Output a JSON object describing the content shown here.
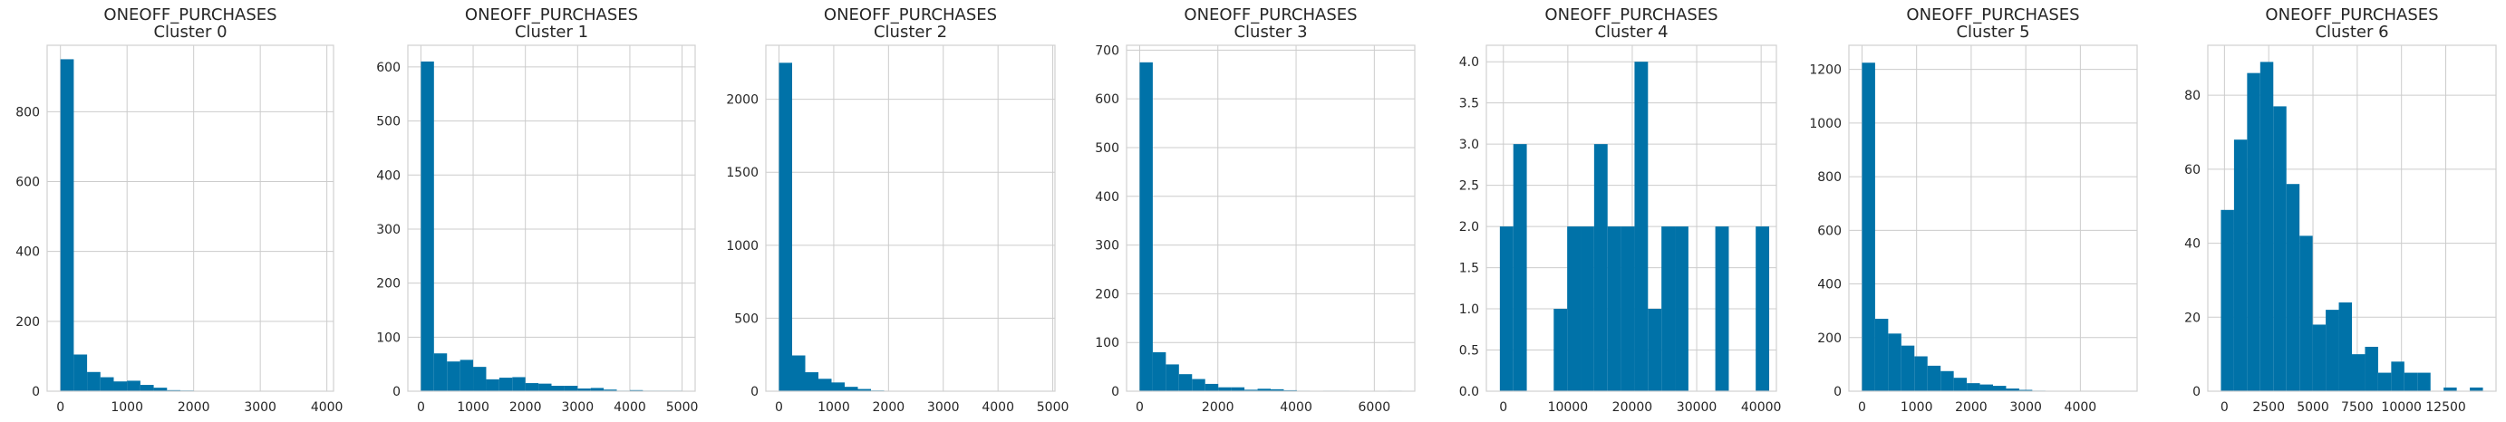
{
  "chart_data": [
    {
      "type": "bar",
      "title": "ONEOFF_PURCHASES",
      "subtitle": "Cluster 0",
      "bin_start": 0,
      "bin_width": 200,
      "values": [
        950,
        105,
        55,
        40,
        28,
        30,
        18,
        10,
        3,
        2,
        1,
        1,
        0,
        0,
        0,
        0,
        0,
        0,
        0,
        1
      ],
      "xlim": [
        -200,
        4100
      ],
      "ylim": [
        0,
        990
      ],
      "xticks": [
        0,
        1000,
        2000,
        3000,
        4000
      ],
      "yticks": [
        0,
        200,
        400,
        600,
        800
      ],
      "color": "#0072a8",
      "grid": true
    },
    {
      "type": "bar",
      "title": "ONEOFF_PURCHASES",
      "subtitle": "Cluster 1",
      "bin_start": 0,
      "bin_width": 250,
      "values": [
        610,
        70,
        55,
        58,
        45,
        22,
        25,
        26,
        15,
        14,
        10,
        10,
        5,
        6,
        3,
        1,
        2,
        1,
        1,
        1
      ],
      "xlim": [
        -250,
        5250
      ],
      "ylim": [
        0,
        640
      ],
      "xticks": [
        0,
        1000,
        2000,
        3000,
        4000,
        5000
      ],
      "yticks": [
        0,
        100,
        200,
        300,
        400,
        500,
        600
      ],
      "color": "#0072a8",
      "grid": true
    },
    {
      "type": "bar",
      "title": "ONEOFF_PURCHASES",
      "subtitle": "Cluster 2",
      "bin_start": 0,
      "bin_width": 240,
      "values": [
        2250,
        245,
        130,
        85,
        60,
        30,
        15,
        5,
        3,
        2,
        1,
        0,
        1,
        0,
        0,
        0,
        0,
        0,
        0,
        1
      ],
      "xlim": [
        -240,
        5040
      ],
      "ylim": [
        0,
        2370
      ],
      "xticks": [
        0,
        1000,
        2000,
        3000,
        4000,
        5000
      ],
      "yticks": [
        0,
        500,
        1000,
        1500,
        2000
      ],
      "color": "#0072a8",
      "grid": true
    },
    {
      "type": "bar",
      "title": "ONEOFF_PURCHASES",
      "subtitle": "Cluster 3",
      "bin_start": 0,
      "bin_width": 335,
      "values": [
        675,
        80,
        55,
        35,
        25,
        15,
        8,
        8,
        3,
        5,
        4,
        2,
        1,
        0,
        1,
        1,
        0,
        0,
        0,
        1
      ],
      "xlim": [
        -335,
        7035
      ],
      "ylim": [
        0,
        710
      ],
      "xticks": [
        0,
        2000,
        4000,
        6000
      ],
      "yticks": [
        0,
        100,
        200,
        300,
        400,
        500,
        600,
        700
      ],
      "color": "#0072a8",
      "grid": true
    },
    {
      "type": "bar",
      "title": "ONEOFF_PURCHASES",
      "subtitle": "Cluster 4",
      "bin_start": -550,
      "bin_width": 2090,
      "values": [
        2,
        3,
        0,
        0,
        1,
        2,
        2,
        3,
        2,
        2,
        4,
        1,
        2,
        2,
        0,
        0,
        2,
        0,
        0,
        2
      ],
      "xlim": [
        -2640,
        42370
      ],
      "ylim": [
        0,
        4.2
      ],
      "xticks": [
        0,
        10000,
        20000,
        30000,
        40000
      ],
      "yticks": [
        0.0,
        0.5,
        1.0,
        1.5,
        2.0,
        2.5,
        3.0,
        3.5,
        4.0
      ],
      "color": "#0072a8",
      "grid": true
    },
    {
      "type": "bar",
      "title": "ONEOFF_PURCHASES",
      "subtitle": "Cluster 5",
      "bin_start": 0,
      "bin_width": 240,
      "values": [
        1225,
        270,
        215,
        170,
        130,
        95,
        75,
        50,
        30,
        25,
        20,
        10,
        5,
        2,
        1,
        1,
        0,
        0,
        0,
        1
      ],
      "xlim": [
        -240,
        5040
      ],
      "ylim": [
        0,
        1290
      ],
      "xticks": [
        0,
        1000,
        2000,
        3000,
        4000
      ],
      "yticks": [
        0,
        200,
        400,
        600,
        800,
        1000,
        1200
      ],
      "color": "#0072a8",
      "grid": true
    },
    {
      "type": "bar",
      "title": "ONEOFF_PURCHASES",
      "subtitle": "Cluster 6",
      "bin_start": -200,
      "bin_width": 740,
      "values": [
        49,
        68,
        86,
        89,
        77,
        56,
        42,
        18,
        22,
        24,
        10,
        12,
        5,
        8,
        5,
        5,
        0,
        1,
        0,
        1
      ],
      "xlim": [
        -940,
        15340
      ],
      "ylim": [
        0,
        93.5
      ],
      "xticks": [
        0,
        2500,
        5000,
        7500,
        10000,
        12500
      ],
      "yticks": [
        0,
        20,
        40,
        60,
        80
      ],
      "color": "#0072a8",
      "grid": true
    }
  ]
}
